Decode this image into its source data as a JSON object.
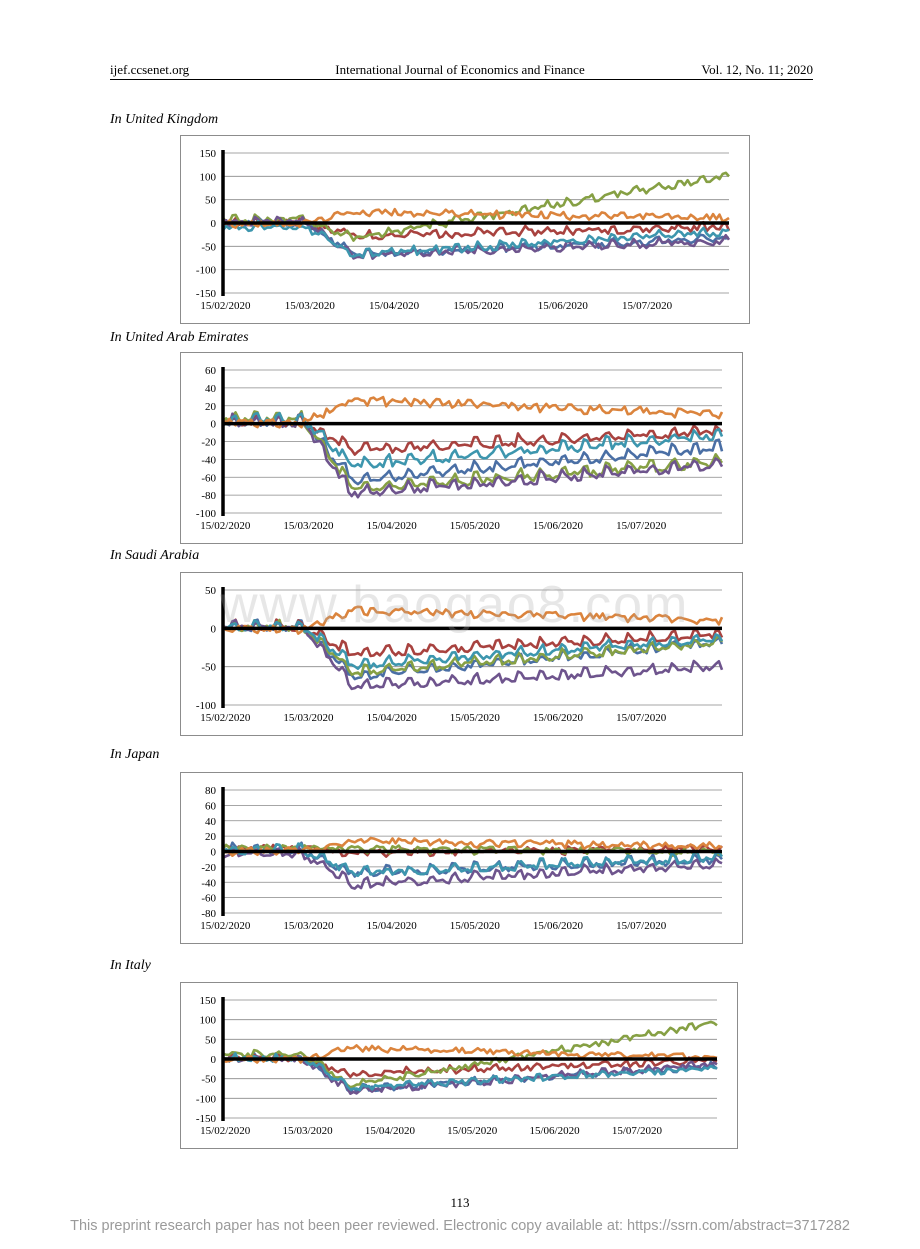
{
  "header": {
    "left": "ijef.ccsenet.org",
    "center": "International Journal of Economics and Finance",
    "right": "Vol. 12, No. 11; 2020"
  },
  "watermark": "www.baogao8.com",
  "page_number": "113",
  "footer_note": "This preprint research paper has not been peer reviewed. Electronic copy available at: https://ssrn.com/abstract=3717282",
  "series_colors": [
    "#4a6fa5",
    "#a8423f",
    "#86a044",
    "#6e548d",
    "#3d96ae",
    "#db843d"
  ],
  "sections": [
    {
      "title": "In United Kingdom"
    },
    {
      "title": "In United Arab Emirates"
    },
    {
      "title": "In Saudi Arabia"
    },
    {
      "title": "In Japan"
    },
    {
      "title": "In Italy"
    }
  ],
  "chart_data": [
    {
      "type": "line",
      "country": "In United Kingdom",
      "xticks": [
        "15/02/2020",
        "15/03/2020",
        "15/04/2020",
        "15/05/2020",
        "15/06/2020",
        "15/07/2020"
      ],
      "yticks": [
        150,
        100,
        50,
        0,
        -50,
        -100,
        -150
      ],
      "ylim": [
        -150,
        150
      ],
      "grid": true,
      "legend": "none",
      "series_levels": [
        {
          "pre": 0,
          "trough": -70,
          "end": -35
        },
        {
          "pre": 0,
          "trough": -30,
          "end": -10
        },
        {
          "pre": 5,
          "trough": -35,
          "end": 100
        },
        {
          "pre": 0,
          "trough": -72,
          "end": -40
        },
        {
          "pre": -10,
          "trough": -70,
          "end": -20
        },
        {
          "pre": 0,
          "trough": 25,
          "end": 12
        }
      ]
    },
    {
      "type": "line",
      "country": "In United Arab Emirates",
      "xticks": [
        "15/02/2020",
        "15/03/2020",
        "15/04/2020",
        "15/05/2020",
        "15/06/2020",
        "15/07/2020"
      ],
      "yticks": [
        60,
        40,
        20,
        0,
        -20,
        -40,
        -60,
        -80,
        -100
      ],
      "ylim": [
        -100,
        60
      ],
      "grid": true,
      "legend": "none",
      "series_levels": [
        {
          "pre": 0,
          "trough": -65,
          "end": -28
        },
        {
          "pre": 0,
          "trough": -32,
          "end": -10
        },
        {
          "pre": 3,
          "trough": -75,
          "end": -45
        },
        {
          "pre": 0,
          "trough": -80,
          "end": -48
        },
        {
          "pre": 2,
          "trough": -48,
          "end": -15
        },
        {
          "pre": 2,
          "trough": 28,
          "end": 12
        }
      ]
    },
    {
      "type": "line",
      "country": "In Saudi Arabia",
      "xticks": [
        "15/02/2020",
        "15/03/2020",
        "15/04/2020",
        "15/05/2020",
        "15/06/2020",
        "15/07/2020"
      ],
      "yticks": [
        50,
        0,
        -50,
        -100
      ],
      "ylim": [
        -100,
        50
      ],
      "grid": true,
      "legend": "none",
      "series_levels": [
        {
          "pre": 0,
          "trough": -65,
          "end": -20
        },
        {
          "pre": 0,
          "trough": -35,
          "end": -10
        },
        {
          "pre": 0,
          "trough": -60,
          "end": -20
        },
        {
          "pre": 0,
          "trough": -78,
          "end": -52
        },
        {
          "pre": 0,
          "trough": -50,
          "end": -15
        },
        {
          "pre": 0,
          "trough": 25,
          "end": 12
        }
      ]
    },
    {
      "type": "line",
      "country": "In Japan",
      "xticks": [
        "15/02/2020",
        "15/03/2020",
        "15/04/2020",
        "15/05/2020",
        "15/06/2020",
        "15/07/2020"
      ],
      "yticks": [
        80,
        60,
        40,
        20,
        0,
        -20,
        -40,
        -60,
        -80
      ],
      "ylim": [
        -80,
        80
      ],
      "grid": true,
      "legend": "none",
      "series_levels": [
        {
          "pre": 0,
          "trough": -30,
          "end": -12
        },
        {
          "pre": 5,
          "trough": 0,
          "end": 5
        },
        {
          "pre": 5,
          "trough": 5,
          "end": 0
        },
        {
          "pre": -5,
          "trough": -45,
          "end": -18
        },
        {
          "pre": 0,
          "trough": -30,
          "end": -10
        },
        {
          "pre": 2,
          "trough": 15,
          "end": 8
        }
      ]
    },
    {
      "type": "line",
      "country": "In Italy",
      "xticks": [
        "15/02/2020",
        "15/03/2020",
        "15/04/2020",
        "15/05/2020",
        "15/06/2020",
        "15/07/2020"
      ],
      "yticks": [
        150,
        100,
        50,
        0,
        -50,
        -100,
        -150
      ],
      "ylim": [
        -150,
        150
      ],
      "grid": true,
      "legend": "none",
      "series_levels": [
        {
          "pre": 0,
          "trough": -80,
          "end": -20
        },
        {
          "pre": 0,
          "trough": -40,
          "end": -5
        },
        {
          "pre": 10,
          "trough": -70,
          "end": 90
        },
        {
          "pre": 0,
          "trough": -85,
          "end": -15
        },
        {
          "pre": 0,
          "trough": -75,
          "end": -25
        },
        {
          "pre": 0,
          "trough": 30,
          "end": 5
        }
      ]
    }
  ]
}
